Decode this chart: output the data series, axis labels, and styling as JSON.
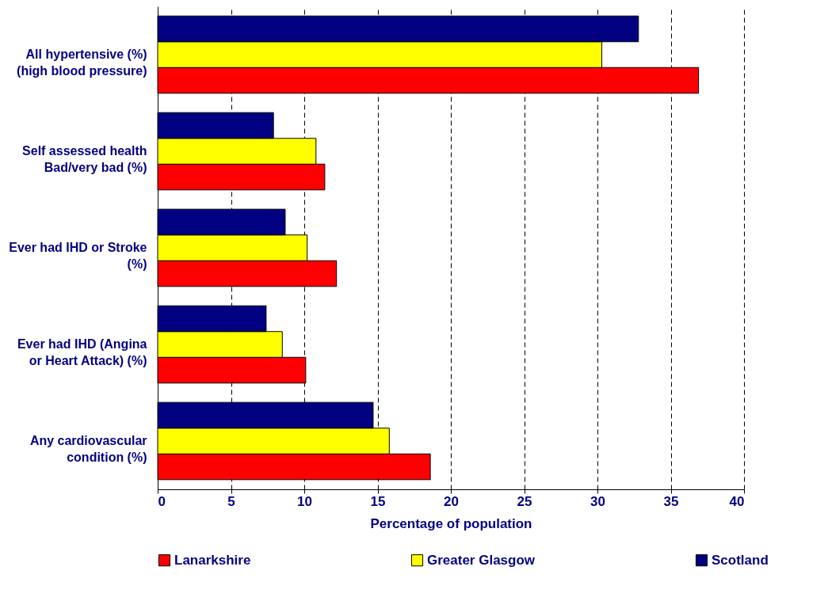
{
  "chart_data": {
    "type": "bar",
    "orientation": "horizontal",
    "xlabel": "Percentage of population",
    "categories": [
      "All hypertensive (%) (high blood pressure)",
      "Self assessed health Bad/very bad (%)",
      "Ever had IHD or Stroke (%)",
      "Ever had IHD (Angina or Heart Attack) (%)",
      "Any cardiovascular condition (%)"
    ],
    "series": [
      {
        "name": "Lanarkshire",
        "color": "#ff0000",
        "values": [
          36.9,
          11.4,
          12.2,
          10.1,
          18.6
        ]
      },
      {
        "name": "Greater Glasgow",
        "color": "#ffff00",
        "values": [
          30.3,
          10.8,
          10.2,
          8.5,
          15.8
        ]
      },
      {
        "name": "Scotland",
        "color": "#000080",
        "values": [
          32.8,
          7.9,
          8.7,
          7.4,
          14.7
        ]
      }
    ],
    "xlim": [
      0,
      40
    ],
    "xticks": [
      0,
      5,
      10,
      15,
      20,
      25,
      30,
      35,
      40
    ],
    "grid": "x",
    "legend": "bottom"
  }
}
